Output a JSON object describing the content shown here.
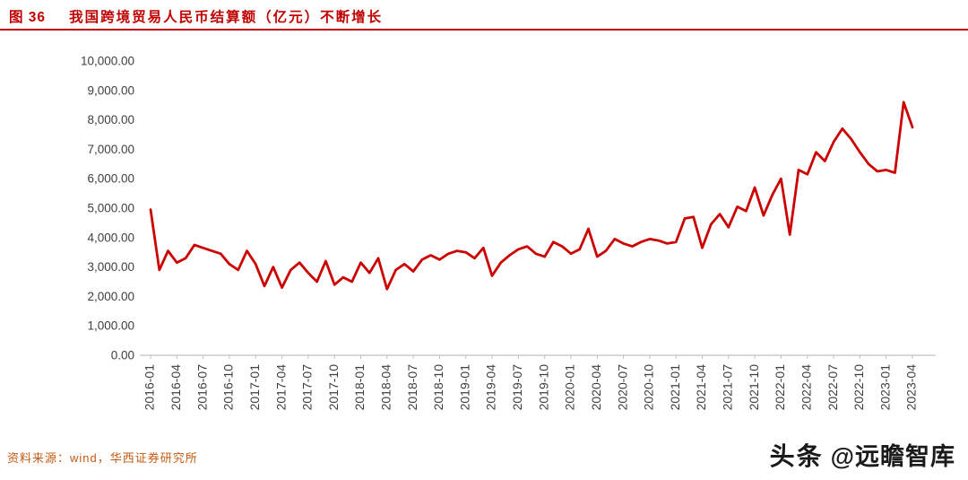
{
  "header": {
    "figure_label": "图 36",
    "title": "我国跨境贸易人民币结算额（亿元）不断增长"
  },
  "footer": {
    "source": "资料来源：wind，华西证券研究所",
    "watermark_brand": "头条",
    "watermark_handle": "@远瞻智库"
  },
  "chart_data": {
    "type": "line",
    "title": "我国跨境贸易人民币结算额（亿元）不断增长",
    "grid": false,
    "legend_position": "none",
    "line_color": "#cc0000",
    "axis_color": "#bfbfbf",
    "tick_text_color": "#3f3f3f",
    "ylim": [
      0,
      10000
    ],
    "y_tick_step": 1000,
    "y_tick_labels": [
      "0.00",
      "1,000.00",
      "2,000.00",
      "3,000.00",
      "4,000.00",
      "5,000.00",
      "6,000.00",
      "7,000.00",
      "8,000.00",
      "9,000.00",
      "10,000.00"
    ],
    "x_tick_labels": [
      "2016-01",
      "2016-04",
      "2016-07",
      "2016-10",
      "2017-01",
      "2017-04",
      "2017-07",
      "2017-10",
      "2018-01",
      "2018-04",
      "2018-07",
      "2018-10",
      "2019-01",
      "2019-04",
      "2019-07",
      "2019-10",
      "2020-01",
      "2020-04",
      "2020-07",
      "2020-10",
      "2021-01",
      "2021-04",
      "2021-07",
      "2021-10",
      "2022-01",
      "2022-04",
      "2022-07",
      "2022-10",
      "2023-01",
      "2023-04"
    ],
    "x": [
      "2016-01",
      "2016-02",
      "2016-03",
      "2016-04",
      "2016-05",
      "2016-06",
      "2016-07",
      "2016-08",
      "2016-09",
      "2016-10",
      "2016-11",
      "2016-12",
      "2017-01",
      "2017-02",
      "2017-03",
      "2017-04",
      "2017-05",
      "2017-06",
      "2017-07",
      "2017-08",
      "2017-09",
      "2017-10",
      "2017-11",
      "2017-12",
      "2018-01",
      "2018-02",
      "2018-03",
      "2018-04",
      "2018-05",
      "2018-06",
      "2018-07",
      "2018-08",
      "2018-09",
      "2018-10",
      "2018-11",
      "2018-12",
      "2019-01",
      "2019-02",
      "2019-03",
      "2019-04",
      "2019-05",
      "2019-06",
      "2019-07",
      "2019-08",
      "2019-09",
      "2019-10",
      "2019-11",
      "2019-12",
      "2020-01",
      "2020-02",
      "2020-03",
      "2020-04",
      "2020-05",
      "2020-06",
      "2020-07",
      "2020-08",
      "2020-09",
      "2020-10",
      "2020-11",
      "2020-12",
      "2021-01",
      "2021-02",
      "2021-03",
      "2021-04",
      "2021-05",
      "2021-06",
      "2021-07",
      "2021-08",
      "2021-09",
      "2021-10",
      "2021-11",
      "2021-12",
      "2022-01",
      "2022-02",
      "2022-03",
      "2022-04",
      "2022-05",
      "2022-06",
      "2022-07",
      "2022-08",
      "2022-09",
      "2022-10",
      "2022-11",
      "2022-12",
      "2023-01",
      "2023-02",
      "2023-03",
      "2023-04"
    ],
    "series": [
      {
        "name": "跨境贸易人民币结算额（亿元）",
        "values": [
          4950,
          2900,
          3550,
          3150,
          3300,
          3750,
          3650,
          3550,
          3450,
          3100,
          2900,
          3550,
          3100,
          2350,
          3000,
          2300,
          2900,
          3150,
          2800,
          2500,
          3200,
          2400,
          2650,
          2500,
          3150,
          2800,
          3300,
          2250,
          2900,
          3100,
          2850,
          3250,
          3400,
          3250,
          3450,
          3550,
          3500,
          3300,
          3650,
          2700,
          3150,
          3400,
          3600,
          3700,
          3450,
          3350,
          3850,
          3700,
          3450,
          3600,
          4300,
          3350,
          3550,
          3950,
          3800,
          3700,
          3850,
          3950,
          3900,
          3800,
          3850,
          4650,
          4700,
          3650,
          4450,
          4800,
          4350,
          5050,
          4900,
          5700,
          4750,
          5450,
          6000,
          4100,
          6300,
          6150,
          6900,
          6600,
          7250,
          7700,
          7350,
          6900,
          6500,
          6250,
          6300,
          6200,
          8600,
          7750
        ]
      }
    ]
  }
}
